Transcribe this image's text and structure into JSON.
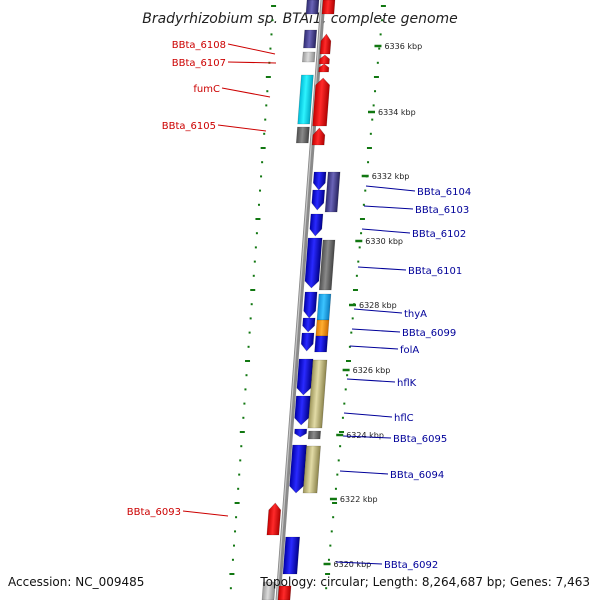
{
  "title": "Bradyrhizobium sp. BTAi1, complete genome",
  "footer": {
    "accession": "Accession: NC_009485",
    "summary": "Topology: circular; Length: 8,264,687 bp; Genes: 7,463"
  },
  "colors": {
    "forward": "#ee1111",
    "reverse": "#1111dd",
    "forward_label": "#cc0000",
    "reverse_label": "#000099",
    "ruler": "#117711",
    "backbone": "#808080"
  },
  "ruler_marks": [
    {
      "kbp": 6336,
      "label": "6336 kbp"
    },
    {
      "kbp": 6334,
      "label": "6334 kbp"
    },
    {
      "kbp": 6332,
      "label": "6332 kbp"
    },
    {
      "kbp": 6330,
      "label": "6330 kbp"
    },
    {
      "kbp": 6328,
      "label": "6328 kbp"
    },
    {
      "kbp": 6326,
      "label": "6326 kbp"
    },
    {
      "kbp": 6324,
      "label": "6324 kbp"
    },
    {
      "kbp": 6322,
      "label": "6322 kbp"
    },
    {
      "kbp": 6320,
      "label": "6320 kbp"
    }
  ],
  "forward_genes": [
    {
      "name": "BBta_6108"
    },
    {
      "name": "BBta_6107"
    },
    {
      "name": "fumC"
    },
    {
      "name": "BBta_6105"
    },
    {
      "name": "BBta_6093"
    }
  ],
  "reverse_genes": [
    {
      "name": "BBta_6104"
    },
    {
      "name": "BBta_6103"
    },
    {
      "name": "BBta_6102"
    },
    {
      "name": "BBta_6101"
    },
    {
      "name": "thyA"
    },
    {
      "name": "BBta_6099"
    },
    {
      "name": "folA"
    },
    {
      "name": "hflK"
    },
    {
      "name": "hflC"
    },
    {
      "name": "BBta_6095"
    },
    {
      "name": "BBta_6094"
    },
    {
      "name": "BBta_6092"
    }
  ]
}
